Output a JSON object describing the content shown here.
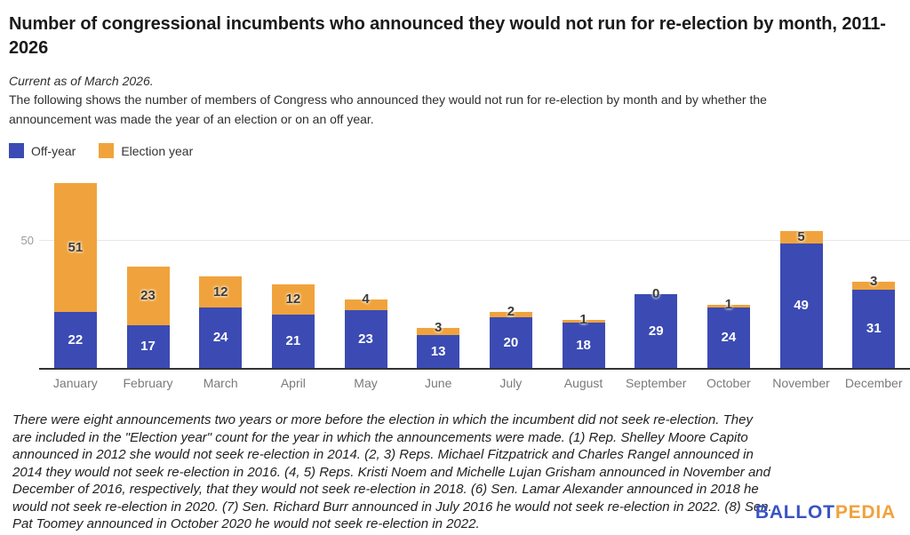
{
  "header": {
    "title": "Number of congressional incumbents who announced they would not run for re-election by month, 2011-2026",
    "subtitle": "Current as of March 2026.",
    "description": "The following shows the number of members of Congress who announced they would not run for re-election by month and by whether the announcement was made the year of an election or on an off year."
  },
  "legend": {
    "items": [
      {
        "label": "Off-year",
        "color": "#3b4bb3"
      },
      {
        "label": "Election year",
        "color": "#f0a33c"
      }
    ]
  },
  "chart_data": {
    "type": "bar",
    "stacked": true,
    "categories": [
      "January",
      "February",
      "March",
      "April",
      "May",
      "June",
      "July",
      "August",
      "September",
      "October",
      "November",
      "December"
    ],
    "series": [
      {
        "name": "Off-year",
        "color": "#3b4bb3",
        "values": [
          22,
          17,
          24,
          21,
          23,
          13,
          20,
          18,
          29,
          24,
          49,
          31
        ]
      },
      {
        "name": "Election year",
        "color": "#f0a33c",
        "values": [
          51,
          23,
          12,
          12,
          4,
          3,
          2,
          1,
          0,
          1,
          5,
          3
        ]
      }
    ],
    "title": "Number of congressional incumbents who announced they would not run for re-election by month, 2011-2026",
    "xlabel": "",
    "ylabel": "",
    "ylim": [
      0,
      77
    ],
    "yticks": [
      50
    ],
    "grid": "horizontal-50-only",
    "legend_position": "top-left",
    "value_labels": "on-segments"
  },
  "footnote": {
    "text": "There were eight announcements two years or more before the election in which the incumbent did not seek re-election. They are included in the \"Election year\" count for the year in which the announcements were made. (1) Rep. Shelley Moore Capito announced in 2012 she would not seek re-election in 2014. (2, 3) Reps. Michael Fitzpatrick and Charles Rangel announced in 2014 they would not seek re-election in 2016. (4, 5) Reps. Kristi Noem and Michelle Lujan Grisham announced in November and December of 2016, respectively, that they would not seek re-election in 2018. (6) Sen. Lamar Alexander announced in 2018 he would not seek re-election in 2020. (7) Sen. Richard Burr announced in July 2016 he would not seek re-election in 2022. (8) Sen. Pat Toomey announced in October 2020 he would not seek re-election in 2022."
  },
  "logo": {
    "part1": "BALLOT",
    "part2": "PEDIA",
    "color1": "#3a53c4",
    "color2": "#f0a23c"
  }
}
